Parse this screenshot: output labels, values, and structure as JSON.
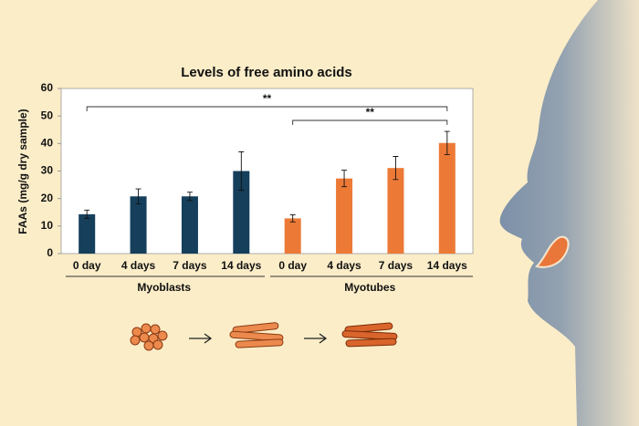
{
  "chart_data": {
    "type": "bar",
    "title": "Levels of free amino acids",
    "y_label": "FAAs (mg/g dry sample)",
    "ylim": [
      0,
      60
    ],
    "yticks": [
      0,
      10,
      20,
      30,
      40,
      50,
      60
    ],
    "groups": [
      {
        "name": "Myoblasts",
        "color": "#153f5b",
        "categories": [
          "0 day",
          "4 days",
          "7 days",
          "14 days"
        ],
        "values": [
          14.3,
          20.8,
          20.8,
          30.0
        ],
        "errors": [
          1.5,
          2.7,
          1.5,
          7.0
        ]
      },
      {
        "name": "Myotubes",
        "color": "#ec7a36",
        "categories": [
          "0 day",
          "4 days",
          "7 days",
          "14 days"
        ],
        "values": [
          12.8,
          27.3,
          31.1,
          40.2
        ],
        "errors": [
          1.3,
          3.0,
          4.2,
          4.2
        ]
      }
    ],
    "annotations": [
      {
        "text": "**"
      },
      {
        "text": "**"
      }
    ]
  }
}
